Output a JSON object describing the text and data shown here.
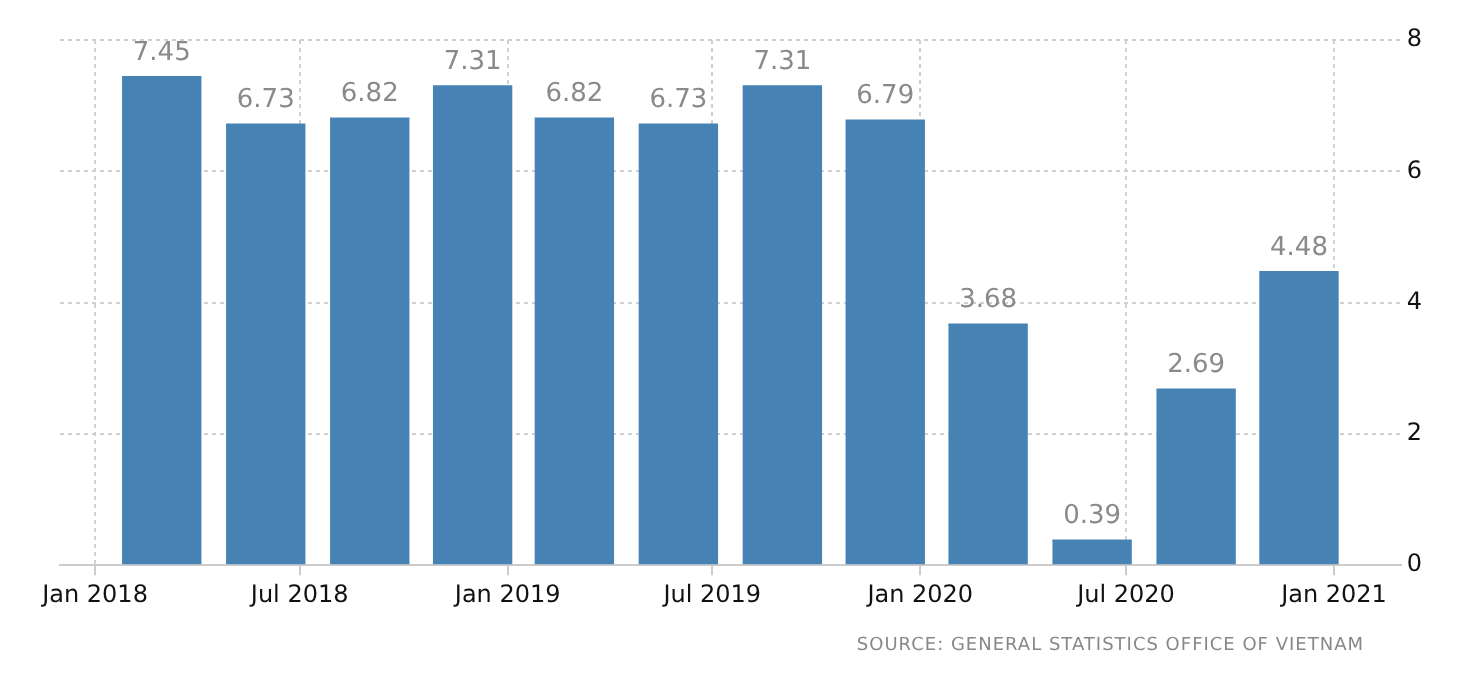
{
  "chart_data": {
    "type": "bar",
    "x": [
      "2018-03",
      "2018-06",
      "2018-09",
      "2018-12",
      "2019-03",
      "2019-06",
      "2019-09",
      "2019-12",
      "2020-03",
      "2020-06",
      "2020-09",
      "2020-12"
    ],
    "values": [
      7.45,
      6.73,
      6.82,
      7.31,
      6.82,
      6.73,
      7.31,
      6.79,
      3.68,
      0.39,
      2.69,
      4.48
    ],
    "color": "#4682b4",
    "data_labels": true,
    "xlim": [
      "2017-12-01",
      "2021-03-01"
    ],
    "xticks": [
      {
        "value": "2018-01",
        "label": "Jan 2018"
      },
      {
        "value": "2018-07",
        "label": "Jul 2018"
      },
      {
        "value": "2019-01",
        "label": "Jan 2019"
      },
      {
        "value": "2019-07",
        "label": "Jul 2019"
      },
      {
        "value": "2020-01",
        "label": "Jan 2020"
      },
      {
        "value": "2020-07",
        "label": "Jul 2020"
      },
      {
        "value": "2021-01",
        "label": "Jan 2021"
      }
    ],
    "ylim": [
      0,
      8
    ],
    "yticks": [
      0,
      2,
      4,
      6,
      8
    ],
    "grid": true,
    "annotations": [
      "SOURCE: GENERAL STATISTICS OFFICE OF VIETNAM"
    ]
  }
}
